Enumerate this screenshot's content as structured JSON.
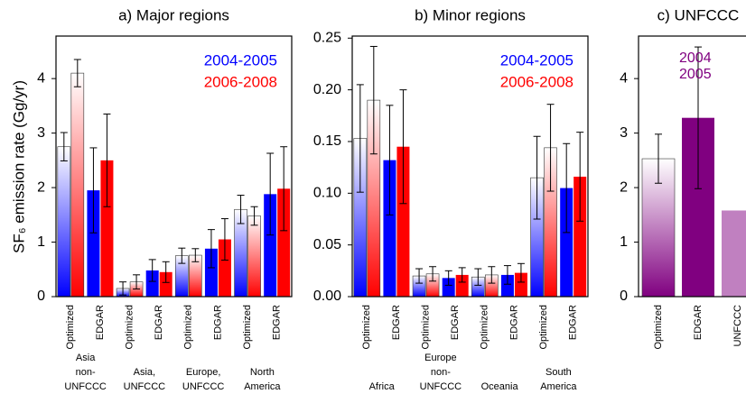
{
  "chart_data": [
    {
      "type": "bar",
      "title": "a) Major regions",
      "ylabel": "SF₆ emission rate (Gg/yr)",
      "x_labels": [
        "Optimized",
        "EDGAR",
        "Optimized",
        "EDGAR",
        "Optimized",
        "EDGAR",
        "Optimized",
        "EDGAR"
      ],
      "groups": [
        [
          "Asia",
          "non-",
          "UNFCCC"
        ],
        [
          "Asia,",
          "UNFCCC"
        ],
        [
          "Europe,",
          "UNFCCC"
        ],
        [
          "North",
          "America"
        ]
      ],
      "series": [
        {
          "name": "2004-2005",
          "color": "#0000ff",
          "values": [
            2.75,
            1.95,
            0.15,
            0.48,
            0.75,
            0.88,
            1.6,
            1.88
          ],
          "errors": [
            0.26,
            0.78,
            0.12,
            0.2,
            0.14,
            0.35,
            0.26,
            0.75
          ]
        },
        {
          "name": "2006-2008",
          "color": "#ff0000",
          "values": [
            4.1,
            2.5,
            0.27,
            0.45,
            0.76,
            1.05,
            1.48,
            1.98
          ],
          "errors": [
            0.25,
            0.85,
            0.13,
            0.19,
            0.12,
            0.38,
            0.17,
            0.77
          ]
        }
      ],
      "ylim": [
        0,
        4.78
      ],
      "yticks": [
        0,
        1,
        2,
        3,
        4
      ]
    },
    {
      "type": "bar",
      "title": "b) Minor regions",
      "x_labels": [
        "Optimized",
        "EDGAR",
        "Optimized",
        "EDGAR",
        "Optimized",
        "EDGAR",
        "Optimized",
        "EDGAR"
      ],
      "groups": [
        [
          "Africa"
        ],
        [
          "Europe",
          "non-",
          "UNFCCC"
        ],
        [
          "Oceania"
        ],
        [
          "South",
          "America"
        ]
      ],
      "series": [
        {
          "name": "2004-2005",
          "color": "#0000ff",
          "values": [
            0.153,
            0.132,
            0.02,
            0.018,
            0.019,
            0.021,
            0.115,
            0.105
          ],
          "errors": [
            0.052,
            0.053,
            0.007,
            0.007,
            0.008,
            0.009,
            0.04,
            0.043
          ]
        },
        {
          "name": "2006-2008",
          "color": "#ff0000",
          "values": [
            0.19,
            0.145,
            0.022,
            0.021,
            0.021,
            0.023,
            0.144,
            0.116
          ],
          "errors": [
            0.052,
            0.055,
            0.007,
            0.007,
            0.008,
            0.009,
            0.042,
            0.043
          ]
        }
      ],
      "ylim": [
        0,
        0.252
      ],
      "yticks": [
        {
          "value": 0,
          "label": "0.00"
        },
        {
          "value": 0.05,
          "label": "0.05"
        },
        {
          "value": 0.1,
          "label": "0.10"
        },
        {
          "value": 0.15,
          "label": "0.15"
        },
        {
          "value": 0.2,
          "label": "0.20"
        },
        {
          "value": 0.25,
          "label": "0.25"
        }
      ]
    },
    {
      "type": "bar",
      "title": "c) UNFCCC",
      "legend": [
        "2004",
        "2005"
      ],
      "x_labels": [
        "Optimized",
        "EDGAR",
        "UNFCCC"
      ],
      "series": [
        {
          "color": "#800080",
          "colors": [
            "#800080",
            "#800080",
            "#c080c0"
          ],
          "values": [
            2.53,
            3.28,
            1.58
          ],
          "errors": [
            0.45,
            1.3,
            null
          ]
        }
      ],
      "ylim": [
        0,
        4.78
      ],
      "yticks": [
        0,
        1,
        2,
        3,
        4
      ]
    }
  ]
}
